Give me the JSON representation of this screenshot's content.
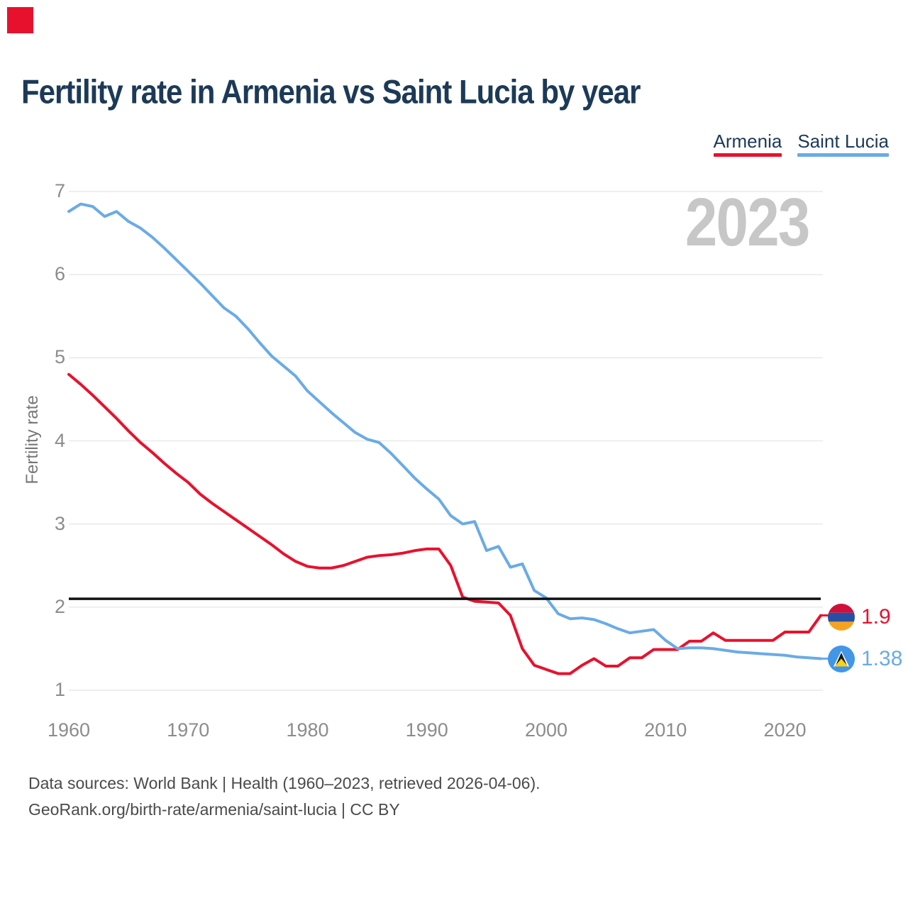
{
  "brand": {
    "logo_color": "#e8112d"
  },
  "title": "Fertility rate in Armenia vs Saint Lucia by year",
  "legend": {
    "items": [
      {
        "label": "Armenia",
        "color": "#e8112d"
      },
      {
        "label": "Saint Lucia",
        "color": "#6aabe4"
      }
    ]
  },
  "watermark": "2023",
  "y_axis": {
    "title": "Fertility rate",
    "ticks": [
      7,
      6,
      5,
      4,
      3,
      2,
      1
    ]
  },
  "x_axis": {
    "ticks": [
      1960,
      1970,
      1980,
      1990,
      2000,
      2010,
      2020
    ]
  },
  "reference_line": {
    "value": 2.1
  },
  "end_labels": [
    {
      "series": "Armenia",
      "value": "1.9"
    },
    {
      "series": "Saint Lucia",
      "value": "1.38"
    }
  ],
  "footer": {
    "line1": "Data sources: World Bank | Health (1960–2023, retrieved 2026-04-06).",
    "line2": "GeoRank.org/birth-rate/armenia/saint-lucia | CC BY"
  },
  "colors": {
    "grid": "#e9e9e9",
    "tick_text": "#8c8c8c",
    "axis_title_text": "#777777",
    "title_text": "#1c3a57",
    "legend_text": "#1c3a57",
    "watermark": "#c7c7c7",
    "reference": "#111111",
    "footer_text": "#4a4a4a"
  },
  "chart_data": {
    "type": "line",
    "title": "Fertility rate in Armenia vs Saint Lucia by year",
    "xlabel": "",
    "ylabel": "Fertility rate",
    "ylim": [
      1,
      7
    ],
    "x_range": [
      1960,
      2023
    ],
    "grid": "horizontal-only",
    "legend_position": "top-right",
    "annotations": {
      "watermark": "2023",
      "reference_line_y": 2.1
    },
    "x": [
      1960,
      1961,
      1962,
      1963,
      1964,
      1965,
      1966,
      1967,
      1968,
      1969,
      1970,
      1971,
      1972,
      1973,
      1974,
      1975,
      1976,
      1977,
      1978,
      1979,
      1980,
      1981,
      1982,
      1983,
      1984,
      1985,
      1986,
      1987,
      1988,
      1989,
      1990,
      1991,
      1992,
      1993,
      1994,
      1995,
      1996,
      1997,
      1998,
      1999,
      2000,
      2001,
      2002,
      2003,
      2004,
      2005,
      2006,
      2007,
      2008,
      2009,
      2010,
      2011,
      2012,
      2013,
      2014,
      2015,
      2016,
      2017,
      2018,
      2019,
      2020,
      2021,
      2022,
      2023
    ],
    "series": [
      {
        "name": "Armenia",
        "color": "#e8112d",
        "end_label": "1.9",
        "values": [
          4.8,
          4.68,
          4.55,
          4.41,
          4.27,
          4.12,
          3.98,
          3.86,
          3.73,
          3.61,
          3.5,
          3.36,
          3.25,
          3.15,
          3.05,
          2.95,
          2.85,
          2.75,
          2.64,
          2.55,
          2.49,
          2.47,
          2.47,
          2.5,
          2.55,
          2.6,
          2.62,
          2.63,
          2.65,
          2.68,
          2.7,
          2.7,
          2.5,
          2.12,
          2.07,
          2.06,
          2.05,
          1.9,
          1.5,
          1.3,
          1.25,
          1.2,
          1.2,
          1.3,
          1.38,
          1.29,
          1.29,
          1.39,
          1.39,
          1.49,
          1.49,
          1.49,
          1.59,
          1.59,
          1.69,
          1.6,
          1.6,
          1.6,
          1.6,
          1.6,
          1.7,
          1.7,
          1.7,
          1.9
        ]
      },
      {
        "name": "Saint Lucia",
        "color": "#6aabe4",
        "end_label": "1.38",
        "values": [
          6.76,
          6.85,
          6.82,
          6.7,
          6.76,
          6.64,
          6.56,
          6.45,
          6.32,
          6.18,
          6.04,
          5.9,
          5.75,
          5.6,
          5.5,
          5.35,
          5.18,
          5.02,
          4.9,
          4.78,
          4.6,
          4.47,
          4.34,
          4.22,
          4.1,
          4.02,
          3.98,
          3.85,
          3.7,
          3.55,
          3.42,
          3.3,
          3.1,
          3.0,
          3.03,
          2.68,
          2.73,
          2.48,
          2.52,
          2.2,
          2.11,
          1.92,
          1.86,
          1.87,
          1.85,
          1.8,
          1.74,
          1.69,
          1.71,
          1.73,
          1.6,
          1.5,
          1.51,
          1.51,
          1.5,
          1.48,
          1.46,
          1.45,
          1.44,
          1.43,
          1.42,
          1.4,
          1.39,
          1.38
        ]
      }
    ]
  }
}
